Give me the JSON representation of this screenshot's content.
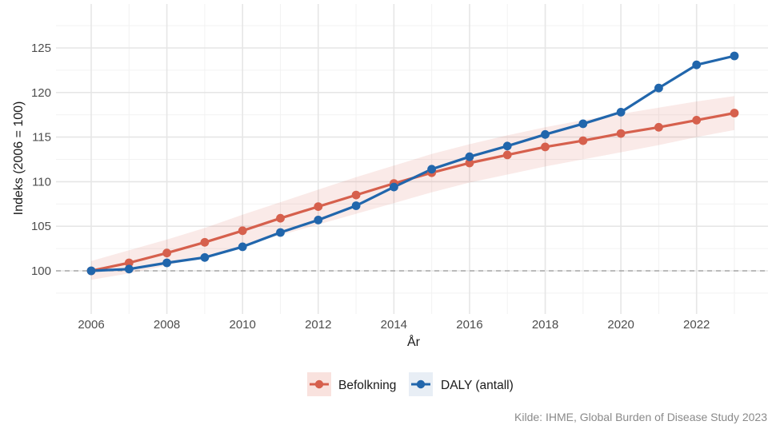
{
  "chart_data": {
    "type": "line",
    "xlabel": "År",
    "ylabel": "Indeks (2006 = 100)",
    "x": [
      2006,
      2007,
      2008,
      2009,
      2010,
      2011,
      2012,
      2013,
      2014,
      2015,
      2016,
      2017,
      2018,
      2019,
      2020,
      2021,
      2022,
      2023
    ],
    "x_ticks": [
      2006,
      2008,
      2010,
      2012,
      2014,
      2016,
      2018,
      2020,
      2022
    ],
    "y_ticks": [
      100,
      105,
      110,
      115,
      120,
      125
    ],
    "xlim": [
      2006,
      2023
    ],
    "ylim": [
      95.6,
      129.7
    ],
    "grid": true,
    "reference_line": {
      "y": 100,
      "style": "dashed"
    },
    "series": [
      {
        "name": "Befolkning",
        "color": "#d6604d",
        "values": [
          100,
          100.9,
          102.0,
          103.2,
          104.5,
          105.9,
          107.2,
          108.5,
          109.8,
          111.0,
          112.1,
          113.0,
          113.9,
          114.6,
          115.4,
          116.1,
          116.9,
          117.7
        ],
        "band_lower": [
          99.0,
          99.7,
          100.6,
          101.6,
          102.8,
          104.0,
          105.2,
          106.4,
          107.6,
          108.8,
          109.9,
          110.8,
          111.7,
          112.5,
          113.3,
          114.1,
          115.0,
          115.8
        ],
        "band_upper": [
          101.1,
          102.3,
          103.5,
          104.8,
          106.3,
          107.7,
          109.1,
          110.5,
          111.8,
          113.1,
          114.2,
          115.2,
          116.1,
          116.9,
          117.6,
          118.3,
          119.0,
          119.6
        ]
      },
      {
        "name": "DALY (antall)",
        "color": "#2166ac",
        "values": [
          100,
          100.2,
          100.9,
          101.5,
          102.7,
          104.3,
          105.7,
          107.3,
          109.4,
          111.4,
          112.8,
          114.0,
          115.3,
          116.5,
          117.8,
          120.5,
          123.1,
          124.1
        ]
      }
    ],
    "legend_position": "bottom",
    "caption": "Kilde: IHME, Global Burden of Disease Study 2023"
  }
}
